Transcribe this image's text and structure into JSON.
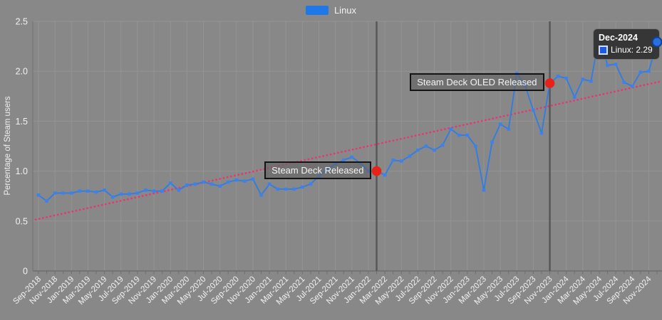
{
  "legend": {
    "items": [
      {
        "label": "Linux",
        "color": "#1f78e8"
      }
    ]
  },
  "tooltip": {
    "title": "Dec-2024",
    "series": "Linux",
    "value": "2.29",
    "label": "Linux: 2.29"
  },
  "colors": {
    "background": "#888888",
    "grid": "#949494",
    "axis": "#6e6e6e",
    "axis_left": "#767676",
    "text": "#f2f2f2",
    "line": "#2e7ce4",
    "marker": "#3b82ec",
    "trend": "#e8356e",
    "event_line": "#565656",
    "event_dot": "#e62219",
    "final_dot": "#2a6fe0"
  },
  "chart_data": {
    "type": "line",
    "title": "",
    "xlabel": "",
    "ylabel": "Percentage of Steam users",
    "ylim": [
      0,
      2.5
    ],
    "ytick_labels": [
      "0",
      "0.5",
      "1.0",
      "1.5",
      "2.0",
      "2.5"
    ],
    "x_tick_step": 2,
    "grid": true,
    "legend_position": "top-center",
    "months": [
      "Sep-2018",
      "Oct-2018",
      "Nov-2018",
      "Dec-2018",
      "Jan-2019",
      "Feb-2019",
      "Mar-2019",
      "Apr-2019",
      "May-2019",
      "Jun-2019",
      "Jul-2019",
      "Aug-2019",
      "Sep-2019",
      "Oct-2019",
      "Nov-2019",
      "Dec-2019",
      "Jan-2020",
      "Feb-2020",
      "Mar-2020",
      "Apr-2020",
      "May-2020",
      "Jun-2020",
      "Jul-2020",
      "Aug-2020",
      "Sep-2020",
      "Oct-2020",
      "Nov-2020",
      "Dec-2020",
      "Jan-2021",
      "Feb-2021",
      "Mar-2021",
      "Apr-2021",
      "May-2021",
      "Jun-2021",
      "Jul-2021",
      "Aug-2021",
      "Sep-2021",
      "Oct-2021",
      "Nov-2021",
      "Dec-2021",
      "Jan-2022",
      "Feb-2022",
      "Mar-2022",
      "Apr-2022",
      "May-2022",
      "Jun-2022",
      "Jul-2022",
      "Aug-2022",
      "Sep-2022",
      "Oct-2022",
      "Nov-2022",
      "Dec-2022",
      "Jan-2023",
      "Feb-2023",
      "Mar-2023",
      "Apr-2023",
      "May-2023",
      "Jun-2023",
      "Jul-2023",
      "Aug-2023",
      "Sep-2023",
      "Oct-2023",
      "Nov-2023",
      "Dec-2023",
      "Jan-2024",
      "Feb-2024",
      "Mar-2024",
      "Apr-2024",
      "May-2024",
      "Jun-2024",
      "Jul-2024",
      "Aug-2024",
      "Sep-2024",
      "Oct-2024",
      "Nov-2024",
      "Dec-2024"
    ],
    "series": [
      {
        "name": "Linux",
        "values": [
          0.76,
          0.7,
          0.78,
          0.78,
          0.78,
          0.8,
          0.8,
          0.79,
          0.81,
          0.74,
          0.77,
          0.77,
          0.78,
          0.81,
          0.8,
          0.8,
          0.88,
          0.81,
          0.86,
          0.87,
          0.89,
          0.87,
          0.85,
          0.89,
          0.91,
          0.9,
          0.92,
          0.76,
          0.87,
          0.82,
          0.82,
          0.82,
          0.84,
          0.87,
          0.95,
          1.02,
          1.07,
          1.11,
          1.14,
          1.08,
          1.0,
          1.0,
          0.96,
          1.11,
          1.1,
          1.15,
          1.21,
          1.25,
          1.21,
          1.26,
          1.42,
          1.36,
          1.36,
          1.25,
          0.81,
          1.29,
          1.47,
          1.42,
          1.98,
          1.86,
          1.61,
          1.38,
          1.88,
          1.95,
          1.93,
          1.74,
          1.92,
          1.9,
          2.36,
          2.06,
          2.07,
          1.89,
          1.85,
          1.99,
          2.0,
          2.29
        ]
      }
    ],
    "trend": {
      "style": "dotted",
      "start_value": 0.52,
      "end_value": 1.89
    },
    "events": [
      {
        "month": "Feb-2022",
        "value": 1.0,
        "label": "Steam Deck Released"
      },
      {
        "month": "Nov-2023",
        "value": 1.88,
        "label": "Steam Deck OLED Released"
      }
    ]
  }
}
